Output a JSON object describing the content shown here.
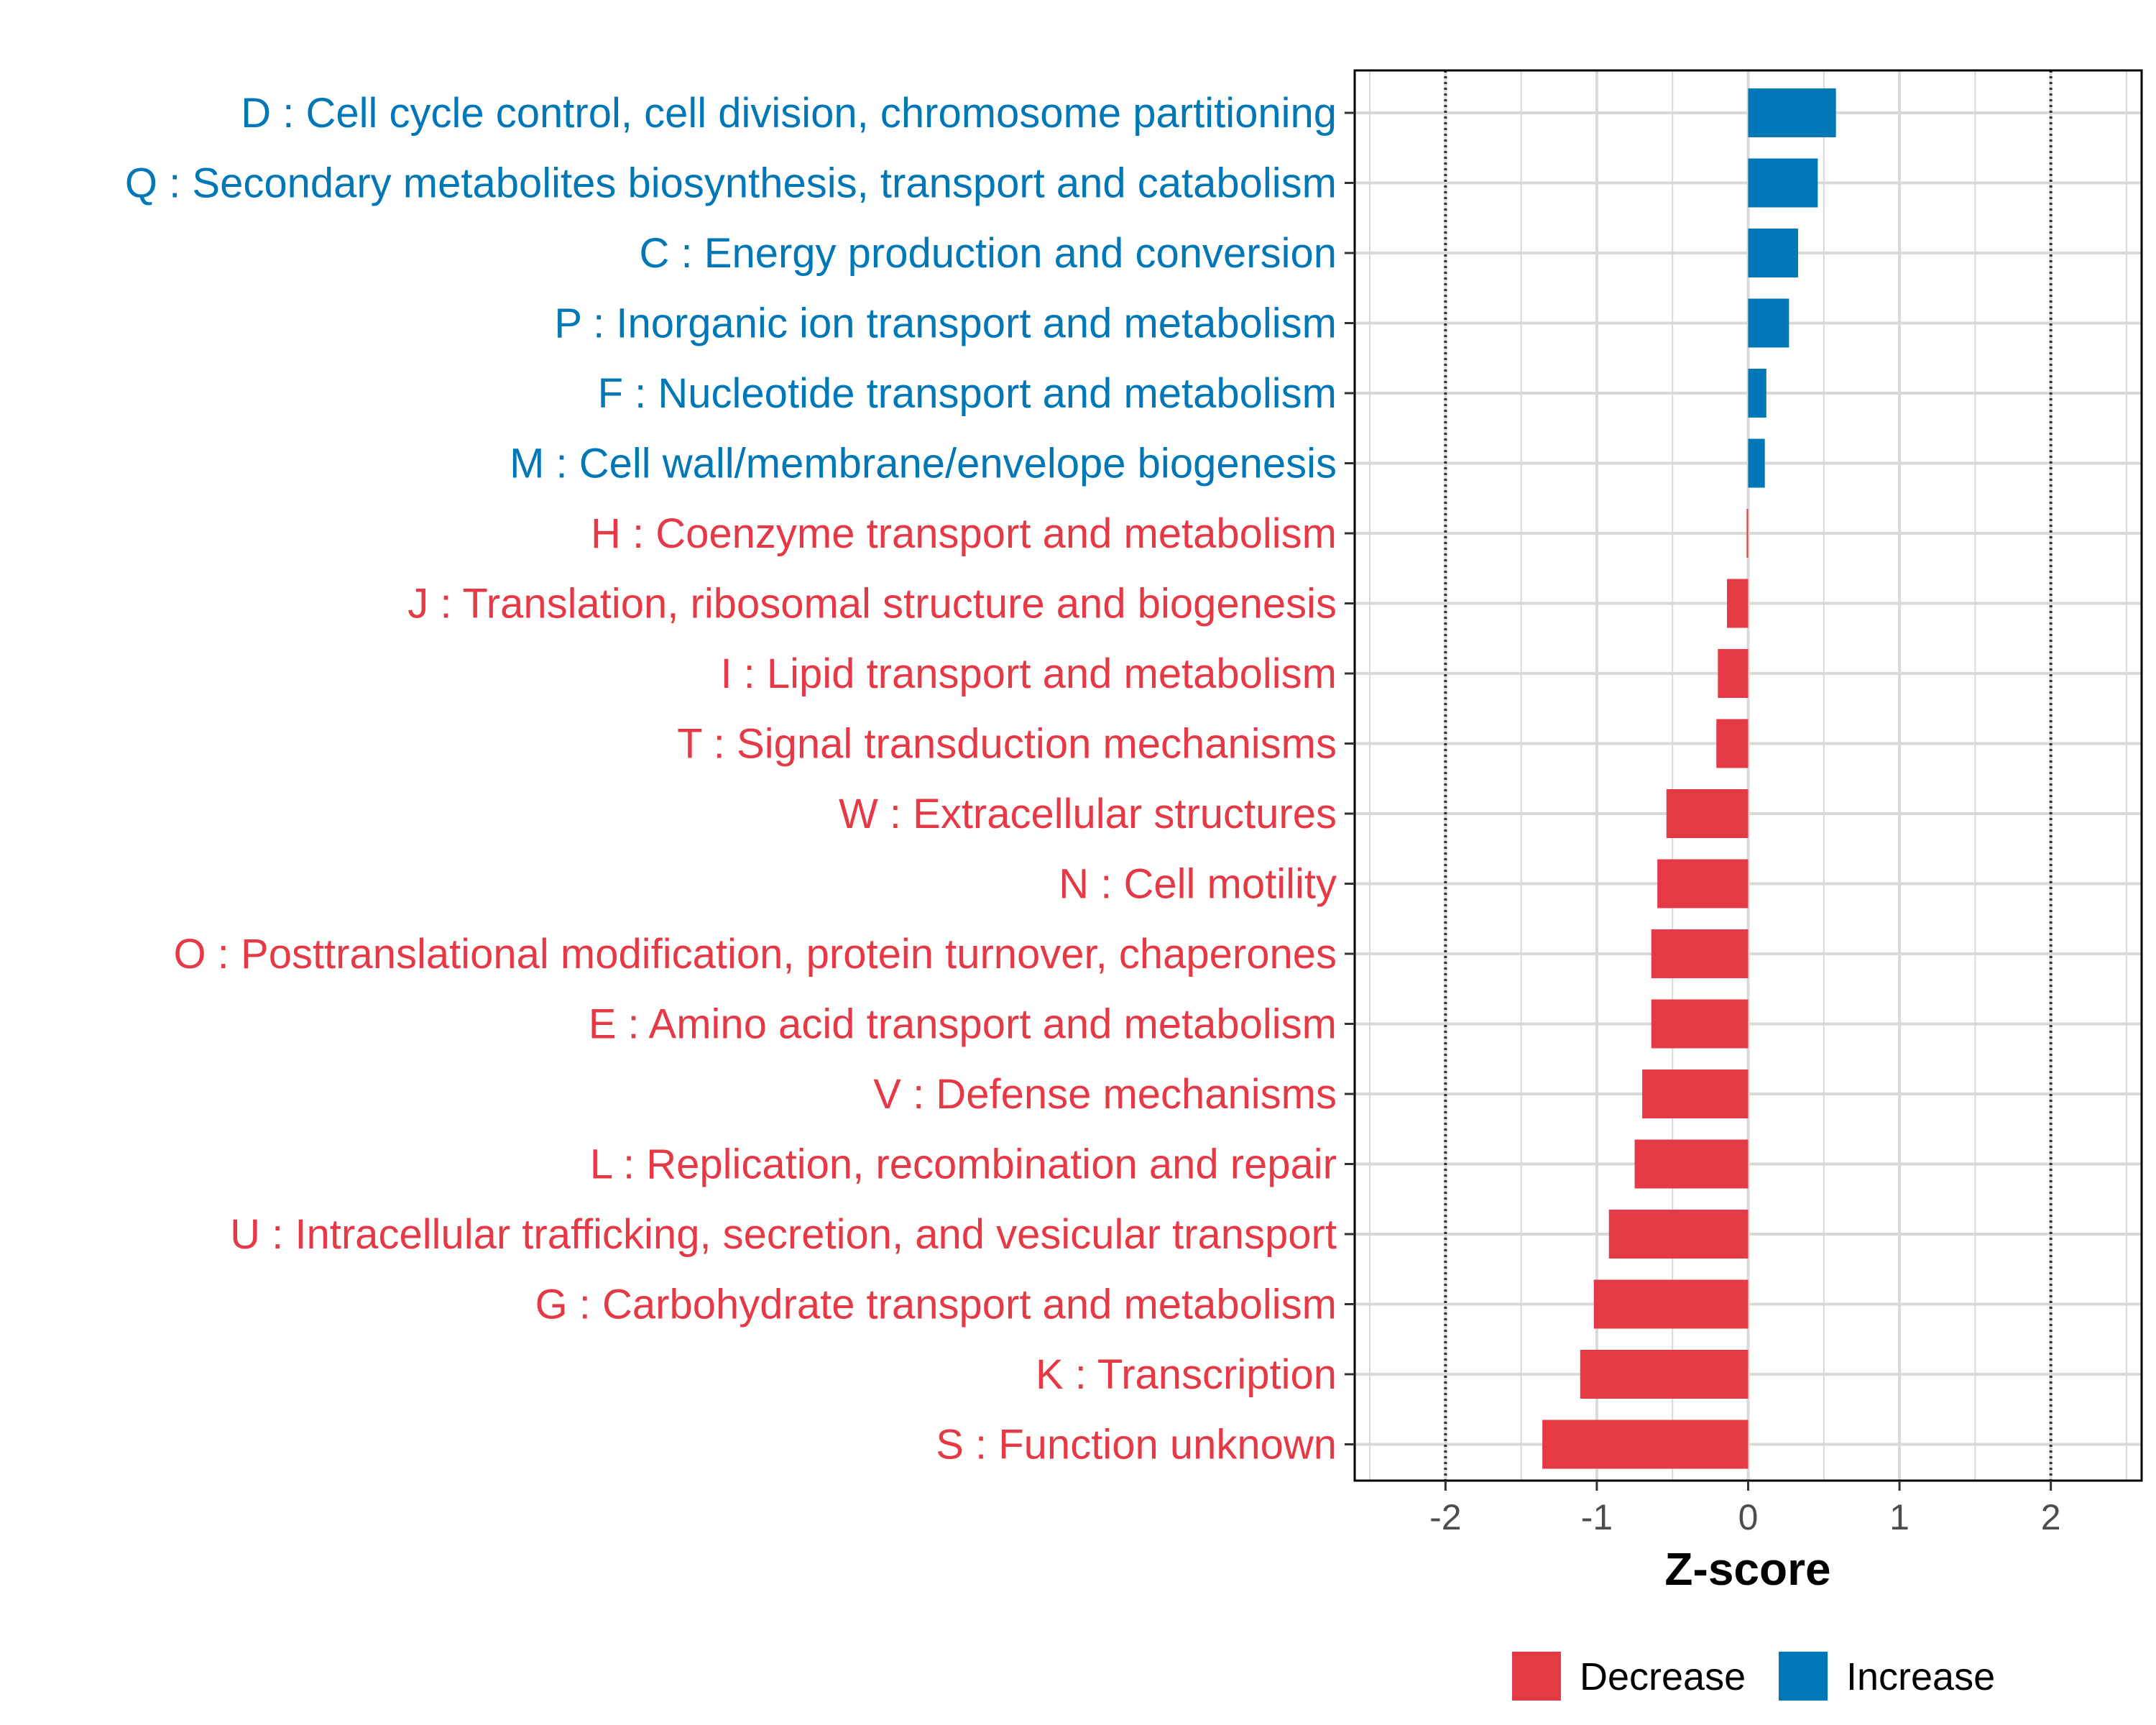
{
  "chart_data": {
    "type": "bar",
    "orientation": "horizontal",
    "xlabel": "Z-score",
    "xlim": [
      -2.6,
      2.6
    ],
    "xticks": [
      -2,
      -1,
      0,
      1,
      2
    ],
    "xtick_labels": [
      "-2",
      "-1",
      "0",
      "1",
      "2"
    ],
    "reference_lines": [
      -2,
      2
    ],
    "grid": true,
    "categories": [
      "D : Cell cycle control, cell division, chromosome partitioning",
      "Q : Secondary metabolites biosynthesis, transport and catabolism",
      "C : Energy production and conversion",
      "P : Inorganic ion transport and metabolism",
      "F : Nucleotide transport and metabolism",
      "M : Cell wall/membrane/envelope biogenesis",
      "H : Coenzyme transport and metabolism",
      "J : Translation, ribosomal structure and biogenesis",
      "I : Lipid transport and metabolism",
      "T : Signal transduction mechanisms",
      "W : Extracellular structures",
      "N : Cell motility",
      "O : Posttranslational modification, protein turnover, chaperones",
      "E : Amino acid transport and metabolism",
      "V : Defense mechanisms",
      "L : Replication, recombination and repair",
      "U : Intracellular trafficking, secretion, and vesicular transport",
      "G : Carbohydrate transport and metabolism",
      "K : Transcription",
      "S : Function unknown"
    ],
    "values": [
      0.58,
      0.46,
      0.33,
      0.27,
      0.12,
      0.11,
      -0.01,
      -0.14,
      -0.2,
      -0.21,
      -0.54,
      -0.6,
      -0.64,
      -0.64,
      -0.7,
      -0.75,
      -0.92,
      -1.02,
      -1.11,
      -1.36
    ],
    "legend": {
      "position": "bottom",
      "items": [
        {
          "label": "Decrease",
          "color": "#E63946"
        },
        {
          "label": "Increase",
          "color": "#0077B6"
        }
      ]
    }
  }
}
